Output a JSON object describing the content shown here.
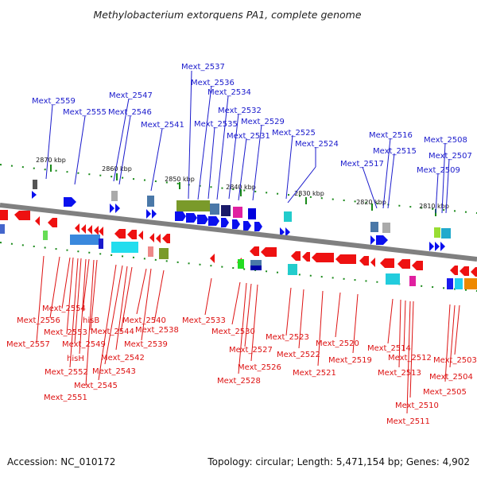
{
  "title": "Methylobacterium extorquens PA1, complete genome",
  "footer": {
    "accession": "Accession: NC_010172",
    "summary": "Topology: circular; Length: 5,471,154 bp; Genes: 4,902"
  },
  "colors": {
    "top_labels": "#1a1acc",
    "bottom_labels": "#dd1111",
    "backbone": "#808080",
    "tick_green": "#1a8a1a"
  },
  "scale_ticks": [
    {
      "label": "2870 kbp"
    },
    {
      "label": "2860 kbp"
    },
    {
      "label": "2850 kbp"
    },
    {
      "label": "2840 kbp"
    },
    {
      "label": "2830 kbp"
    },
    {
      "label": "2820 kbp"
    },
    {
      "label": "2810 kbp"
    }
  ],
  "top_genes": [
    {
      "label": "Mext_2559"
    },
    {
      "label": "Mext_2555"
    },
    {
      "label": "Mext_2547"
    },
    {
      "label": "Mext_2546"
    },
    {
      "label": "Mext_2541"
    },
    {
      "label": "Mext_2537"
    },
    {
      "label": "Mext_2536"
    },
    {
      "label": "Mext_2535"
    },
    {
      "label": "Mext_2534"
    },
    {
      "label": "Mext_2532"
    },
    {
      "label": "Mext_2531"
    },
    {
      "label": "Mext_2529"
    },
    {
      "label": "Mext_2525"
    },
    {
      "label": "Mext_2524"
    },
    {
      "label": "Mext_2517"
    },
    {
      "label": "Mext_2516"
    },
    {
      "label": "Mext_2515"
    },
    {
      "label": "Mext_2509"
    },
    {
      "label": "Mext_2508"
    },
    {
      "label": "Mext_2507"
    }
  ],
  "bottom_genes": [
    {
      "label": "Mext_2554"
    },
    {
      "label": "Mext_2556"
    },
    {
      "label": "Mext_2553"
    },
    {
      "label": "Mext_2557"
    },
    {
      "label": "hisB"
    },
    {
      "label": "Mext_2549"
    },
    {
      "label": "hisH"
    },
    {
      "label": "Mext_2552"
    },
    {
      "label": "Mext_2551"
    },
    {
      "label": "Mext_2544"
    },
    {
      "label": "Mext_2545"
    },
    {
      "label": "Mext_2543"
    },
    {
      "label": "Mext_2542"
    },
    {
      "label": "Mext_2540"
    },
    {
      "label": "Mext_2538"
    },
    {
      "label": "Mext_2539"
    },
    {
      "label": "Mext_2533"
    },
    {
      "label": "Mext_2530"
    },
    {
      "label": "Mext_2527"
    },
    {
      "label": "Mext_2526"
    },
    {
      "label": "Mext_2528"
    },
    {
      "label": "Mext_2523"
    },
    {
      "label": "Mext_2522"
    },
    {
      "label": "Mext_2521"
    },
    {
      "label": "Mext_2520"
    },
    {
      "label": "Mext_2519"
    },
    {
      "label": "Mext_2514"
    },
    {
      "label": "Mext_2512"
    },
    {
      "label": "Mext_2513"
    },
    {
      "label": "Mext_2510"
    },
    {
      "label": "Mext_2511"
    },
    {
      "label": "Mext_2503"
    },
    {
      "label": "Mext_2504"
    },
    {
      "label": "Mext_2505"
    }
  ]
}
